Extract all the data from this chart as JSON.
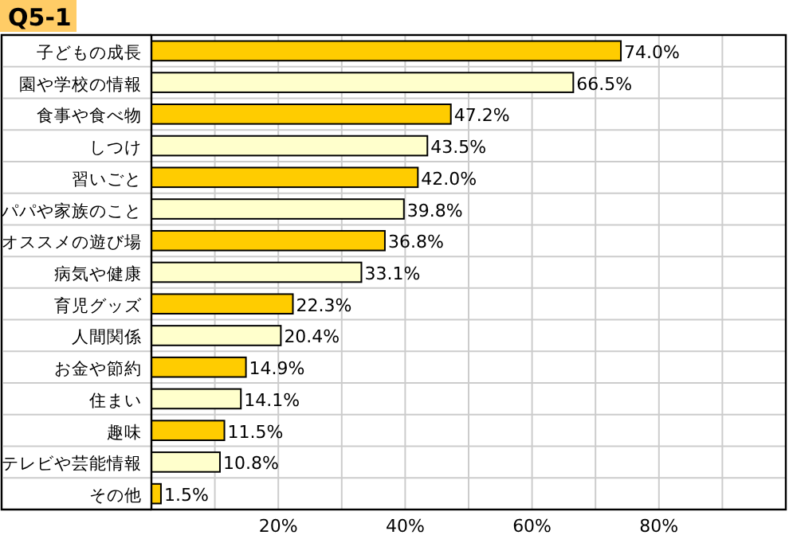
{
  "chart_data": {
    "type": "bar",
    "orientation": "horizontal",
    "title": "Q5-1",
    "categories": [
      "子どもの成長",
      "園や学校の情報",
      "食事や食べ物",
      "しつけ",
      "習いごと",
      "パパや家族のこと",
      "オススメの遊び場",
      "病気や健康",
      "育児グッズ",
      "人間関係",
      "お金や節約",
      "住まい",
      "趣味",
      "テレビや芸能情報",
      "その他"
    ],
    "values": [
      74.0,
      66.5,
      47.2,
      43.5,
      42.0,
      39.8,
      36.8,
      33.1,
      22.3,
      20.4,
      14.9,
      14.1,
      11.5,
      10.8,
      1.5
    ],
    "colors": [
      "#ffcc00",
      "#ffffcc",
      "#ffcc00",
      "#ffffcc",
      "#ffcc00",
      "#ffffcc",
      "#ffcc00",
      "#ffffcc",
      "#ffcc00",
      "#ffffcc",
      "#ffcc00",
      "#ffffcc",
      "#ffcc00",
      "#ffffcc",
      "#ffcc00"
    ],
    "value_labels": [
      "74.0%",
      "66.5%",
      "47.2%",
      "43.5%",
      "42.0%",
      "39.8%",
      "36.8%",
      "33.1%",
      "22.3%",
      "20.4%",
      "14.9%",
      "14.1%",
      "11.5%",
      "10.8%",
      "1.5%"
    ],
    "xlim": [
      0,
      100
    ],
    "xticks": [
      {
        "value": 10,
        "label": null
      },
      {
        "value": 20,
        "label": "20%"
      },
      {
        "value": 30,
        "label": null
      },
      {
        "value": 40,
        "label": "40%"
      },
      {
        "value": 50,
        "label": null
      },
      {
        "value": 60,
        "label": "60%"
      },
      {
        "value": 70,
        "label": null
      },
      {
        "value": 80,
        "label": "80%"
      },
      {
        "value": 90,
        "label": null
      }
    ],
    "grid": true
  }
}
